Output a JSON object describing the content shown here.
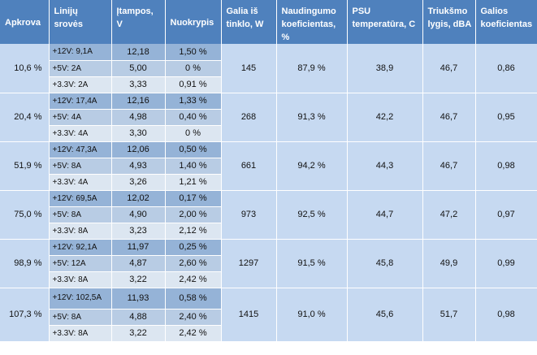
{
  "headers": [
    "Apkrova",
    "Linijų srovės",
    "Įtampos, V",
    "Nuokrypis",
    "Galia iš tinklo, W",
    "Naudingumo koeficientas, %",
    "PSU temperatūra, C",
    "Triukšmo lygis, dBA",
    "Galios koeficientas"
  ],
  "groups": [
    {
      "load": "10,6 %",
      "power": "145",
      "efficiency": "87,9 %",
      "temp": "38,9",
      "noise": "46,7",
      "pf": "0,86",
      "rails": [
        {
          "label": "+12V: 9,1A",
          "voltage": "12,18",
          "deviation": "1,50 %"
        },
        {
          "label": "+5V: 2A",
          "voltage": "5,00",
          "deviation": "0 %"
        },
        {
          "label": "+3.3V: 2A",
          "voltage": "3,33",
          "deviation": "0,91 %"
        }
      ]
    },
    {
      "load": "20,4 %",
      "power": "268",
      "efficiency": "91,3 %",
      "temp": "42,2",
      "noise": "46,7",
      "pf": "0,95",
      "rails": [
        {
          "label": "+12V: 17,4A",
          "voltage": "12,16",
          "deviation": "1,33 %"
        },
        {
          "label": "+5V: 4A",
          "voltage": "4,98",
          "deviation": "0,40 %"
        },
        {
          "label": "+3.3V: 4A",
          "voltage": "3,30",
          "deviation": "0 %"
        }
      ]
    },
    {
      "load": "51,9 %",
      "power": "661",
      "efficiency": "94,2 %",
      "temp": "44,3",
      "noise": "46,7",
      "pf": "0,98",
      "rails": [
        {
          "label": "+12V: 47,3A",
          "voltage": "12,06",
          "deviation": "0,50 %"
        },
        {
          "label": "+5V: 8A",
          "voltage": "4,93",
          "deviation": "1,40 %"
        },
        {
          "label": "+3.3V: 4A",
          "voltage": "3,26",
          "deviation": "1,21 %"
        }
      ]
    },
    {
      "load": "75,0 %",
      "power": "973",
      "efficiency": "92,5 %",
      "temp": "44,7",
      "noise": "47,2",
      "pf": "0,97",
      "rails": [
        {
          "label": "+12V: 69,5A",
          "voltage": "12,02",
          "deviation": "0,17 %"
        },
        {
          "label": "+5V: 8A",
          "voltage": "4,90",
          "deviation": "2,00 %"
        },
        {
          "label": "+3.3V: 8A",
          "voltage": "3,23",
          "deviation": "2,12 %"
        }
      ]
    },
    {
      "load": "98,9 %",
      "power": "1297",
      "efficiency": "91,5 %",
      "temp": "45,8",
      "noise": "49,9",
      "pf": "0,99",
      "rails": [
        {
          "label": "+12V: 92,1A",
          "voltage": "11,97",
          "deviation": "0,25 %"
        },
        {
          "label": "+5V: 12A",
          "voltage": "4,87",
          "deviation": "2,60 %"
        },
        {
          "label": "+3.3V: 8A",
          "voltage": "3,22",
          "deviation": "2,42 %"
        }
      ]
    },
    {
      "load": "107,3 %",
      "power": "1415",
      "efficiency": "91,0 %",
      "temp": "45,6",
      "noise": "51,7",
      "pf": "0,98",
      "rails": [
        {
          "label": "+12V: 102,5A",
          "voltage": "11,93",
          "deviation": "0,58 %"
        },
        {
          "label": "+5V: 8A",
          "voltage": "4,88",
          "deviation": "2,40 %"
        },
        {
          "label": "+3.3V: 8A",
          "voltage": "3,22",
          "deviation": "2,42 %"
        }
      ]
    }
  ]
}
